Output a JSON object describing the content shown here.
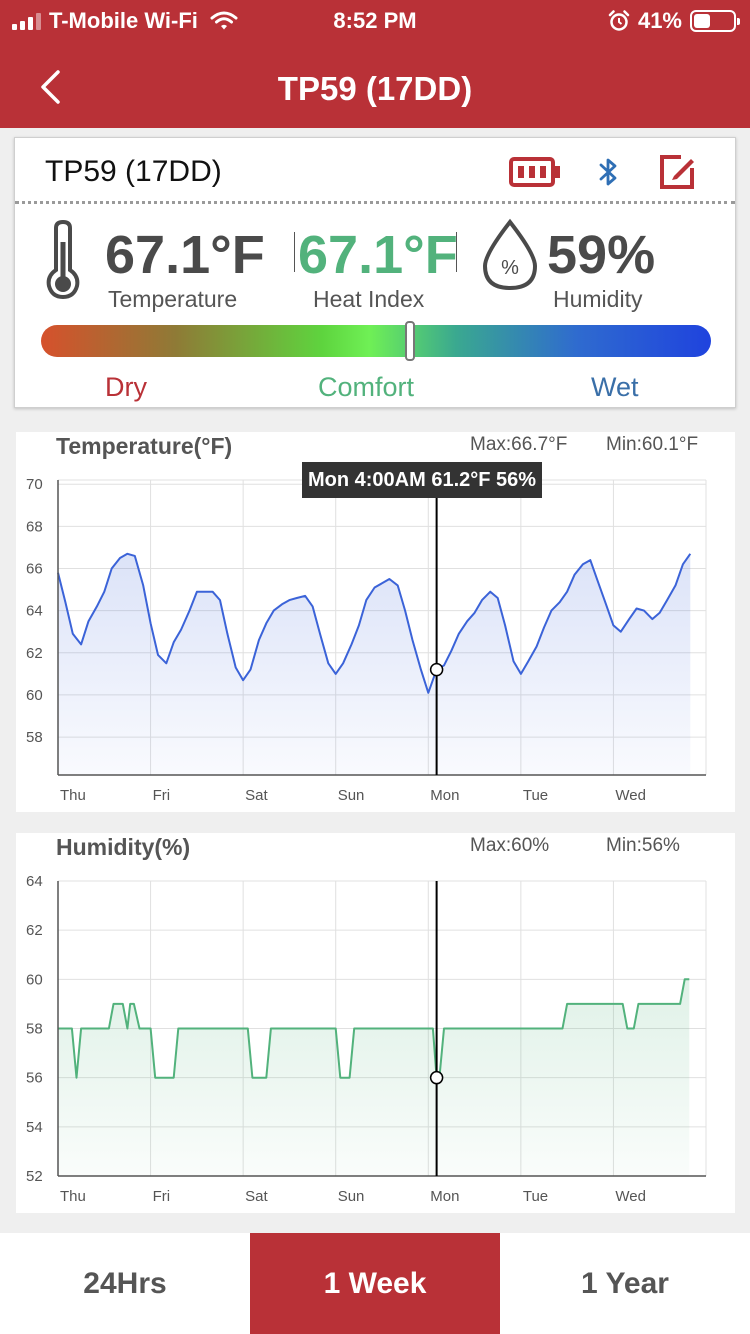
{
  "status_bar": {
    "carrier": "T-Mobile Wi-Fi",
    "time": "8:52 PM",
    "battery": "41%",
    "battery_level": 0.41
  },
  "nav": {
    "title": "TP59 (17DD)"
  },
  "device": {
    "name": "TP59 (17DD)",
    "temperature": {
      "value": "67.1°F",
      "label": "Temperature"
    },
    "heat_index": {
      "value": "67.1°F",
      "label": "Heat Index"
    },
    "humidity": {
      "value": "59%",
      "label": "Humidity"
    },
    "comfort_scale": {
      "labels": [
        "Dry",
        "Comfort",
        "Wet"
      ],
      "position": 0.55
    },
    "colors": {
      "accent": "#b93137",
      "comfort": "#52b27c",
      "wet": "#3a6fa8",
      "bluetooth": "#2f6fb5"
    }
  },
  "charts": {
    "temperature": {
      "title": "Temperature(°F)",
      "max": "Max:66.7°F",
      "min": "Min:60.1°F",
      "tooltip": "Mon 4:00AM 61.2°F 56%"
    },
    "humidity": {
      "title": "Humidity(%)",
      "max": "Max:60%",
      "min": "Min:56%"
    }
  },
  "chart_data": [
    {
      "type": "area",
      "title": "Temperature(°F)",
      "categories": [
        "Thu",
        "Fri",
        "Sat",
        "Sun",
        "Mon",
        "Tue",
        "Wed"
      ],
      "yticks": [
        58,
        60,
        62,
        64,
        66,
        68,
        70
      ],
      "ylim": [
        56.2,
        70.2
      ],
      "xlim": [
        0,
        7
      ],
      "cursor": {
        "x": 4.09,
        "y": 61.2
      },
      "series": [
        {
          "color": "#3b63d8",
          "x": [
            0,
            0.08,
            0.16,
            0.25,
            0.33,
            0.42,
            0.5,
            0.58,
            0.67,
            0.75,
            0.83,
            0.92,
            1,
            1.08,
            1.17,
            1.25,
            1.33,
            1.42,
            1.5,
            1.58,
            1.67,
            1.75,
            1.83,
            1.92,
            2,
            2.08,
            2.17,
            2.25,
            2.33,
            2.42,
            2.5,
            2.58,
            2.67,
            2.75,
            2.83,
            2.92,
            3,
            3.08,
            3.17,
            3.25,
            3.33,
            3.42,
            3.5,
            3.58,
            3.67,
            3.75,
            3.83,
            3.92,
            4,
            4.09,
            4.17,
            4.25,
            4.33,
            4.42,
            4.5,
            4.58,
            4.67,
            4.75,
            4.83,
            4.92,
            5,
            5.08,
            5.17,
            5.25,
            5.33,
            5.42,
            5.5,
            5.58,
            5.67,
            5.75,
            5.83,
            5.92,
            6,
            6.08,
            6.17,
            6.25,
            6.33,
            6.42,
            6.5,
            6.58,
            6.67,
            6.75,
            6.83
          ],
          "y": [
            65.8,
            64.4,
            62.9,
            62.4,
            63.5,
            64.2,
            64.9,
            66.0,
            66.5,
            66.7,
            66.6,
            65.2,
            63.4,
            61.9,
            61.5,
            62.5,
            63.1,
            64.0,
            64.9,
            64.9,
            64.9,
            64.5,
            62.9,
            61.3,
            60.7,
            61.2,
            62.6,
            63.4,
            64.0,
            64.3,
            64.5,
            64.6,
            64.7,
            64.2,
            62.9,
            61.5,
            61.0,
            61.5,
            62.4,
            63.3,
            64.5,
            65.1,
            65.3,
            65.5,
            65.2,
            64.0,
            62.6,
            61.2,
            60.1,
            61.2,
            61.4,
            62.1,
            62.9,
            63.5,
            63.9,
            64.5,
            64.9,
            64.6,
            63.3,
            61.6,
            61.0,
            61.6,
            62.3,
            63.2,
            64.0,
            64.4,
            64.9,
            65.7,
            66.2,
            66.4,
            65.4,
            64.3,
            63.3,
            63.0,
            63.6,
            64.1,
            64.0,
            63.6,
            63.9,
            64.5,
            65.2,
            66.2,
            66.7
          ]
        }
      ]
    },
    {
      "type": "area",
      "title": "Humidity(%)",
      "categories": [
        "Thu",
        "Fri",
        "Sat",
        "Sun",
        "Mon",
        "Tue",
        "Wed"
      ],
      "yticks": [
        52,
        54,
        56,
        58,
        60,
        62,
        64
      ],
      "ylim": [
        52,
        64
      ],
      "xlim": [
        0,
        7
      ],
      "cursor": {
        "x": 4.09,
        "y": 56
      },
      "series": [
        {
          "color": "#52b27c",
          "x": [
            0,
            0.15,
            0.2,
            0.25,
            0.55,
            0.6,
            0.7,
            0.75,
            0.78,
            0.82,
            0.88,
            0.92,
            1.0,
            1.05,
            1.1,
            1.25,
            1.3,
            2.05,
            2.1,
            2.25,
            2.3,
            3.0,
            3.05,
            3.15,
            3.2,
            4.05,
            4.09,
            4.12,
            4.17,
            5.45,
            5.5,
            6.1,
            6.15,
            6.22,
            6.27,
            6.72,
            6.77,
            6.82
          ],
          "y": [
            58,
            58,
            56,
            58,
            58,
            59,
            59,
            58,
            59,
            59,
            58,
            58,
            58,
            56,
            56,
            56,
            58,
            58,
            56,
            56,
            58,
            58,
            56,
            56,
            58,
            58,
            56,
            56,
            58,
            58,
            59,
            59,
            58,
            58,
            59,
            59,
            60,
            60
          ]
        }
      ]
    }
  ],
  "tabs": [
    {
      "label": "24Hrs",
      "active": false
    },
    {
      "label": "1 Week",
      "active": true
    },
    {
      "label": "1 Year",
      "active": false
    }
  ]
}
